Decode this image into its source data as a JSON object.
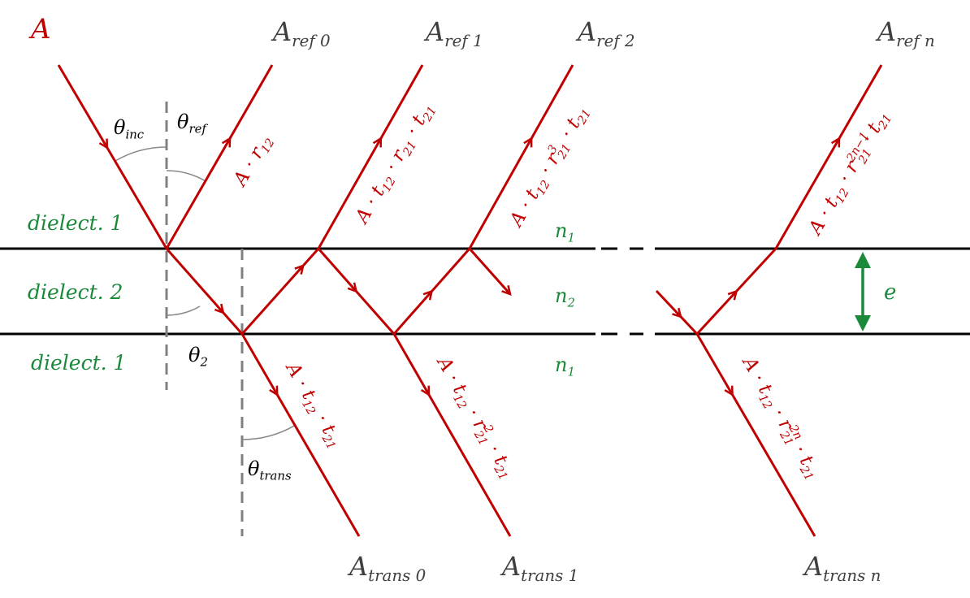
{
  "colors": {
    "ray": "#c00000",
    "medium": "#1a8a3a",
    "interface": "#000000",
    "normal": "#808080",
    "label": "#404040"
  },
  "incident_label": [
    {
      "t": "A"
    }
  ],
  "reflected_labels": [
    [
      {
        "t": "A"
      },
      {
        "sub": "ref 0"
      }
    ],
    [
      {
        "t": "A"
      },
      {
        "sub": "ref 1"
      }
    ],
    [
      {
        "t": "A"
      },
      {
        "sub": "ref 2"
      }
    ],
    [
      {
        "t": "A"
      },
      {
        "sub": "ref n"
      }
    ]
  ],
  "transmitted_labels": [
    [
      {
        "t": "A"
      },
      {
        "sub": "trans 0"
      }
    ],
    [
      {
        "t": "A"
      },
      {
        "sub": "trans 1"
      }
    ],
    [
      {
        "t": "A"
      },
      {
        "sub": "trans n"
      }
    ]
  ],
  "angles": {
    "inc": [
      {
        "t": "θ"
      },
      {
        "sub": "inc"
      }
    ],
    "ref": [
      {
        "t": "θ"
      },
      {
        "sub": "ref"
      }
    ],
    "two": [
      {
        "t": "θ"
      },
      {
        "sub": "2"
      }
    ],
    "trans": [
      {
        "t": "θ"
      },
      {
        "sub": "trans"
      }
    ]
  },
  "media": {
    "top": [
      {
        "t": "dielect. 1"
      }
    ],
    "middle": [
      {
        "t": "dielect. 2"
      }
    ],
    "bottom": [
      {
        "t": "dielect. 1"
      }
    ],
    "n_top": [
      {
        "t": "n"
      },
      {
        "sub": "1"
      }
    ],
    "n_middle": [
      {
        "t": "n"
      },
      {
        "sub": "2"
      }
    ],
    "n_bottom": [
      {
        "t": "n"
      },
      {
        "sub": "1"
      }
    ]
  },
  "thickness_label": [
    {
      "t": "e"
    }
  ],
  "amplitude_labels": {
    "ref0": [
      {
        "t": "A · r"
      },
      {
        "sub": "12"
      }
    ],
    "ref1": [
      {
        "t": "A · t"
      },
      {
        "sub": "12"
      },
      {
        "t": " · r"
      },
      {
        "sub": "21"
      },
      {
        "t": " · t"
      },
      {
        "sub": "21"
      }
    ],
    "ref2": [
      {
        "t": "A · t"
      },
      {
        "sub": "12"
      },
      {
        "t": " · r"
      },
      {
        "supsub": [
          "3",
          "21"
        ]
      },
      {
        "t": " · t"
      },
      {
        "sub": "21"
      }
    ],
    "refn": [
      {
        "t": "A · t"
      },
      {
        "sub": "12"
      },
      {
        "t": " · r"
      },
      {
        "supsub": [
          "2n−1",
          "21"
        ]
      },
      {
        "t": " · t"
      },
      {
        "sub": "21"
      }
    ],
    "trans0": [
      {
        "t": "A · t"
      },
      {
        "sub": "12"
      },
      {
        "t": " · t"
      },
      {
        "sub": "21"
      }
    ],
    "trans1": [
      {
        "t": "A · t"
      },
      {
        "sub": "12"
      },
      {
        "t": " · r"
      },
      {
        "supsub": [
          "2",
          "21"
        ]
      },
      {
        "t": " · t"
      },
      {
        "sub": "21"
      }
    ],
    "transn": [
      {
        "t": "A · t"
      },
      {
        "sub": "12"
      },
      {
        "t": " · r"
      },
      {
        "supsub": [
          "2n",
          "21"
        ]
      },
      {
        "t": " · t"
      },
      {
        "sub": "21"
      }
    ]
  }
}
